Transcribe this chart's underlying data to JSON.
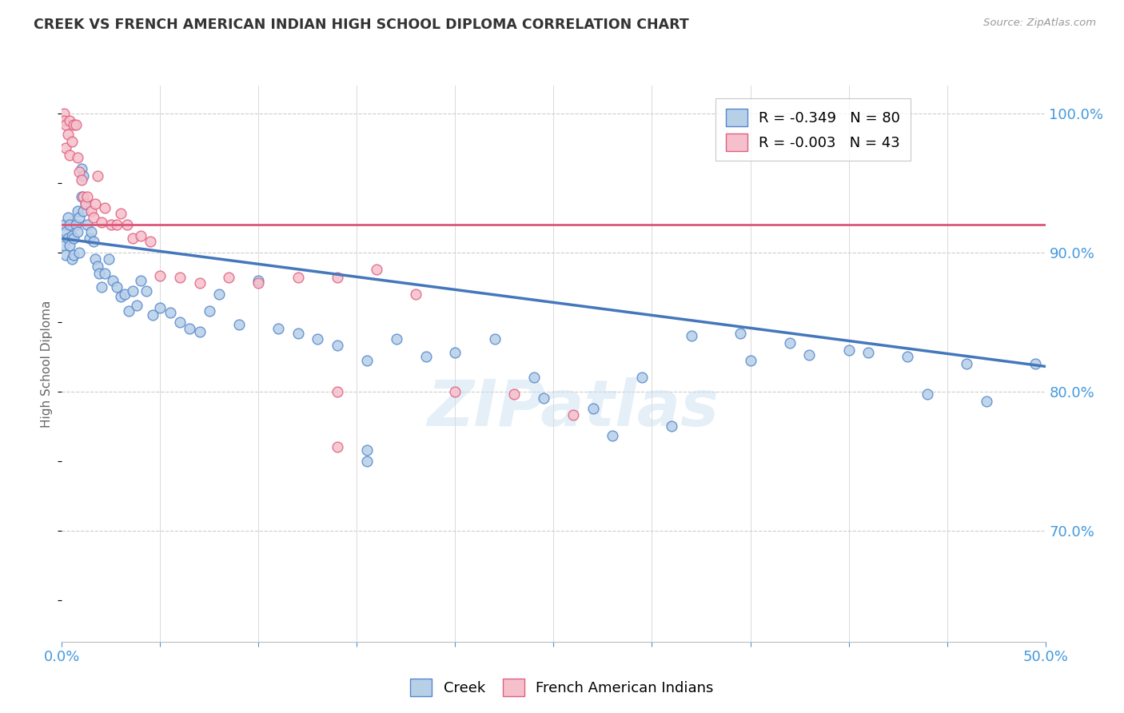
{
  "title": "CREEK VS FRENCH AMERICAN INDIAN HIGH SCHOOL DIPLOMA CORRELATION CHART",
  "source": "Source: ZipAtlas.com",
  "ylabel": "High School Diploma",
  "watermark": "ZIPatlas",
  "legend_blue": "R = -0.349   N = 80",
  "legend_pink": "R = -0.003   N = 43",
  "legend_label_blue": "Creek",
  "legend_label_pink": "French American Indians",
  "xmin": 0.0,
  "xmax": 0.5,
  "ymin": 0.62,
  "ymax": 1.02,
  "blue_trend_x": [
    0.0,
    0.5
  ],
  "blue_trend_y": [
    0.91,
    0.818
  ],
  "pink_trend_x": [
    0.0,
    0.5
  ],
  "pink_trend_y": [
    0.92,
    0.92
  ],
  "blue_scatter_x": [
    0.001,
    0.001,
    0.002,
    0.002,
    0.003,
    0.003,
    0.004,
    0.004,
    0.005,
    0.005,
    0.006,
    0.006,
    0.007,
    0.008,
    0.008,
    0.009,
    0.009,
    0.01,
    0.01,
    0.011,
    0.011,
    0.012,
    0.013,
    0.014,
    0.015,
    0.016,
    0.017,
    0.018,
    0.019,
    0.02,
    0.022,
    0.024,
    0.026,
    0.028,
    0.03,
    0.032,
    0.034,
    0.036,
    0.038,
    0.04,
    0.043,
    0.046,
    0.05,
    0.055,
    0.06,
    0.065,
    0.07,
    0.075,
    0.08,
    0.09,
    0.1,
    0.11,
    0.12,
    0.13,
    0.14,
    0.155,
    0.17,
    0.185,
    0.2,
    0.22,
    0.245,
    0.27,
    0.295,
    0.32,
    0.35,
    0.38,
    0.41,
    0.44,
    0.47,
    0.495,
    0.155,
    0.155,
    0.24,
    0.28,
    0.31,
    0.345,
    0.37,
    0.4,
    0.43,
    0.46
  ],
  "blue_scatter_y": [
    0.92,
    0.905,
    0.915,
    0.898,
    0.925,
    0.91,
    0.905,
    0.92,
    0.912,
    0.895,
    0.91,
    0.898,
    0.92,
    0.915,
    0.93,
    0.9,
    0.925,
    0.94,
    0.96,
    0.955,
    0.93,
    0.935,
    0.92,
    0.91,
    0.915,
    0.908,
    0.895,
    0.89,
    0.885,
    0.875,
    0.885,
    0.895,
    0.88,
    0.875,
    0.868,
    0.87,
    0.858,
    0.872,
    0.862,
    0.88,
    0.872,
    0.855,
    0.86,
    0.857,
    0.85,
    0.845,
    0.843,
    0.858,
    0.87,
    0.848,
    0.88,
    0.845,
    0.842,
    0.838,
    0.833,
    0.822,
    0.838,
    0.825,
    0.828,
    0.838,
    0.795,
    0.788,
    0.81,
    0.84,
    0.822,
    0.826,
    0.828,
    0.798,
    0.793,
    0.82,
    0.75,
    0.758,
    0.81,
    0.768,
    0.775,
    0.842,
    0.835,
    0.83,
    0.825,
    0.82
  ],
  "pink_scatter_x": [
    0.001,
    0.001,
    0.002,
    0.002,
    0.003,
    0.004,
    0.004,
    0.005,
    0.006,
    0.007,
    0.008,
    0.009,
    0.01,
    0.011,
    0.012,
    0.013,
    0.015,
    0.016,
    0.017,
    0.018,
    0.02,
    0.022,
    0.025,
    0.028,
    0.03,
    0.033,
    0.036,
    0.04,
    0.045,
    0.05,
    0.06,
    0.07,
    0.085,
    0.1,
    0.12,
    0.14,
    0.16,
    0.18,
    0.2,
    0.23,
    0.26,
    0.14,
    0.14
  ],
  "pink_scatter_y": [
    1.0,
    0.995,
    0.992,
    0.975,
    0.985,
    0.995,
    0.97,
    0.98,
    0.992,
    0.992,
    0.968,
    0.958,
    0.952,
    0.94,
    0.935,
    0.94,
    0.93,
    0.925,
    0.935,
    0.955,
    0.922,
    0.932,
    0.92,
    0.92,
    0.928,
    0.92,
    0.91,
    0.912,
    0.908,
    0.883,
    0.882,
    0.878,
    0.882,
    0.878,
    0.882,
    0.882,
    0.888,
    0.87,
    0.8,
    0.798,
    0.783,
    0.76,
    0.8
  ],
  "blue_color": "#b8cfe8",
  "pink_color": "#f5c0cc",
  "blue_edge_color": "#5588cc",
  "pink_edge_color": "#e06080",
  "blue_line_color": "#4477bb",
  "pink_line_color": "#dd5577",
  "title_color": "#333333",
  "axis_color": "#4499dd",
  "grid_color": "#cccccc",
  "background_color": "#ffffff"
}
